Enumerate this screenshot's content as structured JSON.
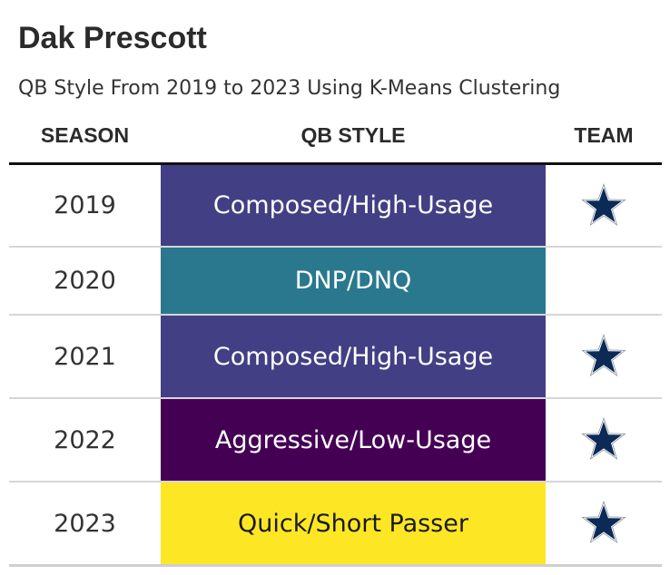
{
  "chart_data": {
    "type": "table",
    "title": "Dak Prescott",
    "subtitle": "QB Style From 2019 to 2023 Using K-Means Clustering",
    "columns": [
      "SEASON",
      "QB STYLE",
      "TEAM"
    ],
    "rows": [
      {
        "season": "2019",
        "qb_style": "Composed/High-Usage",
        "style_color": "#433f85",
        "text_color": "#ffffff",
        "team_icon": "cowboys-star-icon"
      },
      {
        "season": "2020",
        "qb_style": "DNP/DNQ",
        "style_color": "#2a788e",
        "text_color": "#ffffff",
        "team_icon": ""
      },
      {
        "season": "2021",
        "qb_style": "Composed/High-Usage",
        "style_color": "#433f85",
        "text_color": "#ffffff",
        "team_icon": "cowboys-star-icon"
      },
      {
        "season": "2022",
        "qb_style": "Aggressive/Low-Usage",
        "style_color": "#440154",
        "text_color": "#ffffff",
        "team_icon": "cowboys-star-icon"
      },
      {
        "season": "2023",
        "qb_style": "Quick/Short Passer",
        "style_color": "#fde725",
        "text_color": "#1a1a1a",
        "team_icon": "cowboys-star-icon"
      }
    ],
    "team_star_color": "#0b2a55",
    "team_star_outline": "#8a95a5"
  }
}
